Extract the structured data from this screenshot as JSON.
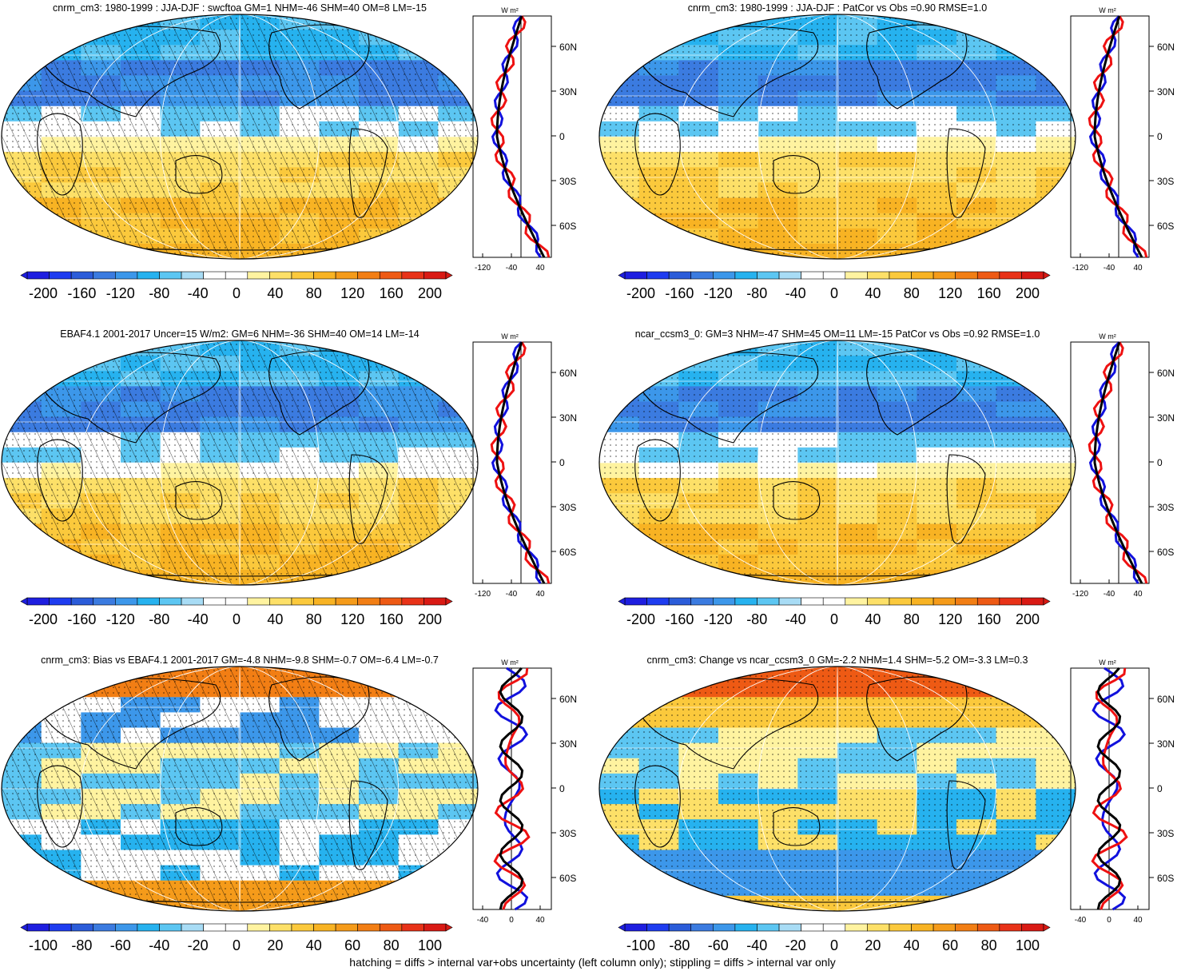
{
  "footer": "hatching = diffs > internal var+obs uncertainty (left column only); stippling = diffs > internal var only",
  "colors": {
    "palette": [
      "#1e1ee0",
      "#1e3cf0",
      "#2b5cd9",
      "#3b7be0",
      "#3c97ea",
      "#26b2ef",
      "#5cc6f2",
      "#a8dcf5",
      "#ffffff",
      "#ffffff",
      "#fff3a0",
      "#fde068",
      "#fbc93c",
      "#f8b323",
      "#f59b1a",
      "#f27e14",
      "#ee5a14",
      "#e83218",
      "#d91a14"
    ],
    "outline": "#000000",
    "zonal_red": "#ee1111",
    "zonal_blue": "#1111dd",
    "zonal_black": "#000000"
  },
  "profile_lat_labels": [
    "60N",
    "30N",
    "0",
    "30S",
    "60S"
  ],
  "profile_units": "W m²",
  "panels": [
    {
      "id": "cnrm-climatology",
      "title": "cnrm_cm3: 1980-1999 : JJA-DJF : swcftoa GM=1 NHM=-46 SHM=40 OM=8 LM=-15",
      "colorbar_ticks": [
        "-200",
        "-160",
        "-120",
        "-80",
        "-40",
        "0",
        "40",
        "80",
        "120",
        "160",
        "200"
      ],
      "profile_ticks": [
        "-120",
        "-40",
        "40"
      ],
      "hatching": true,
      "pattern": "climo"
    },
    {
      "id": "cnrm-patcor",
      "title": "cnrm_cm3: 1980-1999 : JJA-DJF : PatCor vs Obs =0.90 RMSE=1.0",
      "colorbar_ticks": [
        "-200",
        "-160",
        "-120",
        "-80",
        "-40",
        "0",
        "40",
        "80",
        "120",
        "160",
        "200"
      ],
      "profile_ticks": [
        "-120",
        "-40",
        "40"
      ],
      "hatching": false,
      "pattern": "climo"
    },
    {
      "id": "ebaf-obs",
      "title": "EBAF4.1 2001-2017 Uncer=15 W/m2: GM=6 NHM=-36 SHM=40 OM=14 LM=-14",
      "colorbar_ticks": [
        "-200",
        "-160",
        "-120",
        "-80",
        "-40",
        "0",
        "40",
        "80",
        "120",
        "160",
        "200"
      ],
      "profile_ticks": [
        "-120",
        "-40",
        "40"
      ],
      "hatching": true,
      "pattern": "climo"
    },
    {
      "id": "ncar-model",
      "title": "ncar_ccsm3_0: GM=3 NHM=-47 SHM=45 OM=11 LM=-15 PatCor vs Obs =0.92 RMSE=1.0",
      "colorbar_ticks": [
        "-200",
        "-160",
        "-120",
        "-80",
        "-40",
        "0",
        "40",
        "80",
        "120",
        "160",
        "200"
      ],
      "profile_ticks": [
        "-120",
        "-40",
        "40"
      ],
      "hatching": false,
      "pattern": "climo"
    },
    {
      "id": "cnrm-bias",
      "title": "cnrm_cm3: Bias vs EBAF4.1 2001-2017 GM=-4.8 NHM=-9.8 SHM=-0.7 OM=-6.4 LM=-0.7",
      "colorbar_ticks": [
        "-100",
        "-80",
        "-60",
        "-40",
        "-20",
        "0",
        "20",
        "40",
        "60",
        "80",
        "100"
      ],
      "profile_ticks": [
        "-40",
        "0",
        "40"
      ],
      "hatching": true,
      "pattern": "bias"
    },
    {
      "id": "cnrm-change",
      "title": "cnrm_cm3: Change vs ncar_ccsm3_0 GM=-2.2 NHM=1.4 SHM=-5.2 OM=-3.3 LM=0.3",
      "colorbar_ticks": [
        "-100",
        "-80",
        "-60",
        "-40",
        "-20",
        "0",
        "20",
        "40",
        "60",
        "80",
        "100"
      ],
      "profile_ticks": [
        "-40",
        "0",
        "40"
      ],
      "hatching": false,
      "pattern": "change"
    }
  ]
}
